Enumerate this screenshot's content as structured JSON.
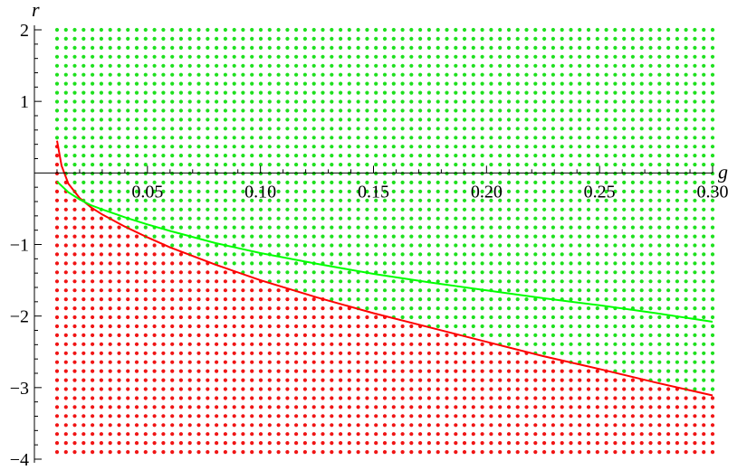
{
  "chart_data": {
    "type": "scatter",
    "title": "",
    "xlabel": "g",
    "ylabel": "r",
    "xlim": [
      0,
      0.3
    ],
    "ylim": [
      -4,
      2
    ],
    "x_ticks": [
      {
        "value": 0.05,
        "label": "0.05"
      },
      {
        "value": 0.1,
        "label": "0.10"
      },
      {
        "value": 0.15,
        "label": "0.15"
      },
      {
        "value": 0.2,
        "label": "0.20"
      },
      {
        "value": 0.25,
        "label": "0.25"
      },
      {
        "value": 0.3,
        "label": "0.30"
      }
    ],
    "y_ticks": [
      {
        "value": 2,
        "label": "2"
      },
      {
        "value": 1,
        "label": "1"
      },
      {
        "value": -1,
        "label": "−1"
      },
      {
        "value": -2,
        "label": "−2"
      },
      {
        "value": -3,
        "label": "−3"
      },
      {
        "value": -4,
        "label": "−4"
      }
    ],
    "grid": false,
    "dot_grid": {
      "x_start": 0.01,
      "x_end": 0.3,
      "x_count": 75,
      "y_start": -3.9,
      "y_end": 2.0,
      "y_count": 48,
      "upper_color": "#1ee01e",
      "lower_color": "#f01414"
    },
    "series": [
      {
        "color": "#ff0000",
        "points": [
          [
            0.01,
            0.45
          ],
          [
            0.012,
            0.1
          ],
          [
            0.015,
            -0.15
          ],
          [
            0.02,
            -0.35
          ],
          [
            0.025,
            -0.48
          ],
          [
            0.03,
            -0.58
          ],
          [
            0.04,
            -0.75
          ],
          [
            0.05,
            -0.9
          ],
          [
            0.06,
            -1.04
          ],
          [
            0.08,
            -1.28
          ],
          [
            0.1,
            -1.5
          ],
          [
            0.125,
            -1.74
          ],
          [
            0.15,
            -1.96
          ],
          [
            0.175,
            -2.16
          ],
          [
            0.2,
            -2.36
          ],
          [
            0.225,
            -2.56
          ],
          [
            0.25,
            -2.74
          ],
          [
            0.275,
            -2.93
          ],
          [
            0.3,
            -3.11
          ]
        ]
      },
      {
        "color": "#00ff00",
        "points": [
          [
            0.01,
            -0.12
          ],
          [
            0.015,
            -0.27
          ],
          [
            0.02,
            -0.37
          ],
          [
            0.025,
            -0.45
          ],
          [
            0.03,
            -0.51
          ],
          [
            0.04,
            -0.62
          ],
          [
            0.05,
            -0.72
          ],
          [
            0.06,
            -0.81
          ],
          [
            0.08,
            -0.98
          ],
          [
            0.1,
            -1.12
          ],
          [
            0.125,
            -1.27
          ],
          [
            0.15,
            -1.41
          ],
          [
            0.175,
            -1.53
          ],
          [
            0.2,
            -1.64
          ],
          [
            0.225,
            -1.75
          ],
          [
            0.25,
            -1.85
          ],
          [
            0.275,
            -1.96
          ],
          [
            0.3,
            -2.08
          ]
        ]
      }
    ]
  }
}
